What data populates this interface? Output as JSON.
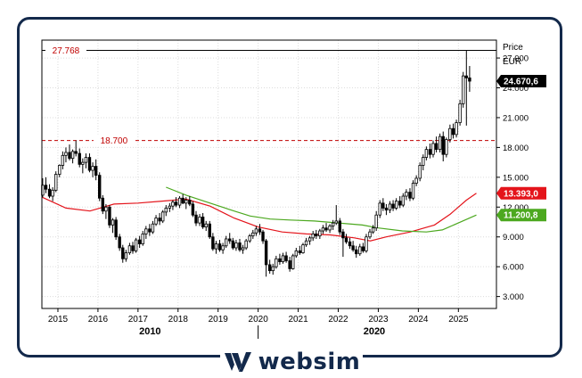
{
  "chart_data": {
    "type": "candlestick",
    "price_axis_title": "Price",
    "price_axis_unit": "EUR",
    "y_ticks": [
      {
        "value": 3000,
        "label": "3.000"
      },
      {
        "value": 6000,
        "label": "6.000"
      },
      {
        "value": 9000,
        "label": "9.000"
      },
      {
        "value": 12000,
        "label": "12.000"
      },
      {
        "value": 15000,
        "label": "15.000"
      },
      {
        "value": 18000,
        "label": "18.000"
      },
      {
        "value": 21000,
        "label": "21.000"
      },
      {
        "value": 24000,
        "label": "24.000"
      },
      {
        "value": 27000,
        "label": "27.000"
      }
    ],
    "ylim": [
      1800,
      28800
    ],
    "x_years": [
      "2015",
      "2016",
      "2017",
      "2018",
      "2019",
      "2020",
      "2021",
      "2022",
      "2023",
      "2024",
      "2025"
    ],
    "x_start": 2014.6,
    "x_end": 2025.95,
    "decade_labels": [
      {
        "year": 2010,
        "label": "2010"
      },
      {
        "year": 2020,
        "label": "2020"
      }
    ],
    "reference_lines": [
      {
        "value": 27768,
        "label": "27.768",
        "style": "solid",
        "color": "#000000"
      },
      {
        "value": 18700,
        "label": "18.700",
        "style": "dashed",
        "color": "#c00000"
      }
    ],
    "price_tags": [
      {
        "value": 24670.6,
        "label": "24.670,6",
        "color": "#000000"
      },
      {
        "value": 13393.0,
        "label": "13.393,0",
        "color": "#e4141b"
      },
      {
        "value": 11200.8,
        "label": "11.200,8",
        "color": "#4ca81f"
      }
    ],
    "series": [
      {
        "kind": "moving_average",
        "color": "#e4141b",
        "points": [
          [
            2014.6,
            13000
          ],
          [
            2015.2,
            11900
          ],
          [
            2015.8,
            11600
          ],
          [
            2016.4,
            12300
          ],
          [
            2017.0,
            12400
          ],
          [
            2017.6,
            12600
          ],
          [
            2018.2,
            12800
          ],
          [
            2018.8,
            12100
          ],
          [
            2019.4,
            10900
          ],
          [
            2020.0,
            10000
          ],
          [
            2020.6,
            9500
          ],
          [
            2021.2,
            9300
          ],
          [
            2021.8,
            9200
          ],
          [
            2022.4,
            8900
          ],
          [
            2022.8,
            8600
          ],
          [
            2023.2,
            9000
          ],
          [
            2023.8,
            9500
          ],
          [
            2024.4,
            10200
          ],
          [
            2024.8,
            11300
          ],
          [
            2025.2,
            12700
          ],
          [
            2025.45,
            13400
          ]
        ]
      },
      {
        "kind": "moving_average",
        "color": "#4ca81f",
        "points": [
          [
            2017.7,
            14000
          ],
          [
            2018.2,
            13200
          ],
          [
            2018.8,
            12400
          ],
          [
            2019.4,
            11600
          ],
          [
            2019.8,
            11100
          ],
          [
            2020.3,
            10800
          ],
          [
            2020.8,
            10700
          ],
          [
            2021.4,
            10600
          ],
          [
            2022.0,
            10400
          ],
          [
            2022.6,
            10200
          ],
          [
            2023.0,
            9900
          ],
          [
            2023.6,
            9600
          ],
          [
            2024.2,
            9500
          ],
          [
            2024.6,
            9700
          ],
          [
            2025.0,
            10400
          ],
          [
            2025.45,
            11200
          ]
        ]
      },
      {
        "kind": "monthly_candles",
        "color": "#000000",
        "candles": [
          [
            2014.62,
            13200,
            14900,
            13000,
            14200
          ],
          [
            2014.7,
            14200,
            15000,
            13400,
            13800
          ],
          [
            2014.79,
            13800,
            14300,
            12900,
            13100
          ],
          [
            2014.87,
            13100,
            14000,
            12600,
            13700
          ],
          [
            2014.95,
            13700,
            15600,
            13500,
            15300
          ],
          [
            2015.04,
            15300,
            16300,
            15000,
            16200
          ],
          [
            2015.12,
            16200,
            17600,
            15800,
            17200
          ],
          [
            2015.2,
            17200,
            18000,
            16500,
            17500
          ],
          [
            2015.29,
            17500,
            18300,
            16700,
            16900
          ],
          [
            2015.37,
            16900,
            17800,
            16400,
            17600
          ],
          [
            2015.45,
            17600,
            18700,
            17100,
            17400
          ],
          [
            2015.54,
            17400,
            17900,
            16000,
            16300
          ],
          [
            2015.62,
            16300,
            16900,
            15400,
            16500
          ],
          [
            2015.7,
            16500,
            17400,
            15900,
            17000
          ],
          [
            2015.79,
            17000,
            17400,
            15500,
            15700
          ],
          [
            2015.87,
            15700,
            16500,
            15000,
            16100
          ],
          [
            2015.95,
            16100,
            16800,
            14700,
            15200
          ],
          [
            2016.04,
            15200,
            15500,
            12600,
            12900
          ],
          [
            2016.12,
            12900,
            13200,
            11300,
            11600
          ],
          [
            2016.2,
            11600,
            12300,
            10800,
            12000
          ],
          [
            2016.29,
            12000,
            12200,
            9900,
            10200
          ],
          [
            2016.37,
            10200,
            10900,
            9400,
            10700
          ],
          [
            2016.45,
            10700,
            11000,
            8700,
            9000
          ],
          [
            2016.54,
            9000,
            9300,
            7600,
            7900
          ],
          [
            2016.62,
            7900,
            8200,
            6400,
            6800
          ],
          [
            2016.7,
            6800,
            7700,
            6500,
            7400
          ],
          [
            2016.79,
            7400,
            8400,
            7200,
            8100
          ],
          [
            2016.87,
            8100,
            8500,
            7300,
            7600
          ],
          [
            2016.95,
            7600,
            8900,
            7400,
            8700
          ],
          [
            2017.04,
            8700,
            9100,
            7900,
            8300
          ],
          [
            2017.12,
            8300,
            9600,
            8100,
            9300
          ],
          [
            2017.2,
            9300,
            10100,
            8800,
            9800
          ],
          [
            2017.29,
            9800,
            10300,
            9100,
            9500
          ],
          [
            2017.37,
            9500,
            10600,
            9300,
            10300
          ],
          [
            2017.45,
            10300,
            11200,
            10100,
            10900
          ],
          [
            2017.54,
            10900,
            11400,
            10200,
            10600
          ],
          [
            2017.62,
            10600,
            11700,
            10400,
            11500
          ],
          [
            2017.7,
            11500,
            12200,
            11100,
            11900
          ],
          [
            2017.79,
            11900,
            12400,
            11500,
            12100
          ],
          [
            2017.87,
            12100,
            12700,
            11700,
            12500
          ],
          [
            2017.95,
            12500,
            13000,
            12000,
            12200
          ],
          [
            2018.04,
            12200,
            13100,
            11900,
            12900
          ],
          [
            2018.12,
            12900,
            13300,
            12300,
            12400
          ],
          [
            2018.2,
            12400,
            13000,
            11800,
            12700
          ],
          [
            2018.29,
            12700,
            13100,
            12100,
            12300
          ],
          [
            2018.37,
            12300,
            12600,
            11000,
            11200
          ],
          [
            2018.45,
            11200,
            11600,
            10100,
            10400
          ],
          [
            2018.54,
            10400,
            11300,
            10100,
            11000
          ],
          [
            2018.62,
            11000,
            11400,
            9800,
            10000
          ],
          [
            2018.7,
            10000,
            10600,
            9600,
            10300
          ],
          [
            2018.79,
            10300,
            10600,
            8800,
            9000
          ],
          [
            2018.87,
            9000,
            9400,
            7600,
            7800
          ],
          [
            2018.95,
            7800,
            8600,
            7300,
            8300
          ],
          [
            2019.04,
            8300,
            8700,
            7500,
            7700
          ],
          [
            2019.12,
            7700,
            8400,
            7300,
            8100
          ],
          [
            2019.2,
            8100,
            9100,
            7900,
            8800
          ],
          [
            2019.29,
            8800,
            9400,
            8300,
            8600
          ],
          [
            2019.37,
            8600,
            8900,
            7700,
            7900
          ],
          [
            2019.45,
            7900,
            8700,
            7600,
            8400
          ],
          [
            2019.54,
            8400,
            8800,
            7500,
            7700
          ],
          [
            2019.62,
            7700,
            8200,
            7300,
            7900
          ],
          [
            2019.7,
            7900,
            8800,
            7700,
            8600
          ],
          [
            2019.79,
            8600,
            9300,
            8400,
            9100
          ],
          [
            2019.87,
            9100,
            9700,
            8800,
            9400
          ],
          [
            2019.95,
            9400,
            10100,
            9100,
            9800
          ],
          [
            2020.04,
            9800,
            10300,
            9200,
            9500
          ],
          [
            2020.12,
            9500,
            9700,
            8300,
            8600
          ],
          [
            2020.2,
            8600,
            8800,
            5000,
            6200
          ],
          [
            2020.29,
            6200,
            6700,
            5300,
            5600
          ],
          [
            2020.37,
            5600,
            6300,
            5200,
            6000
          ],
          [
            2020.45,
            6000,
            7100,
            5800,
            6800
          ],
          [
            2020.54,
            6800,
            7300,
            6200,
            6500
          ],
          [
            2020.62,
            6500,
            7400,
            6300,
            7100
          ],
          [
            2020.7,
            7100,
            7500,
            6400,
            6600
          ],
          [
            2020.79,
            6600,
            7000,
            5500,
            5800
          ],
          [
            2020.87,
            5800,
            7300,
            5700,
            7100
          ],
          [
            2020.95,
            7100,
            7900,
            6900,
            7600
          ],
          [
            2021.04,
            7600,
            8100,
            7200,
            7400
          ],
          [
            2021.12,
            7400,
            8400,
            7300,
            8200
          ],
          [
            2021.2,
            8200,
            8900,
            8000,
            8600
          ],
          [
            2021.29,
            8600,
            9100,
            8200,
            8900
          ],
          [
            2021.37,
            8900,
            9600,
            8600,
            9300
          ],
          [
            2021.45,
            9300,
            9700,
            8800,
            9100
          ],
          [
            2021.54,
            9100,
            9800,
            8800,
            9600
          ],
          [
            2021.62,
            9600,
            10200,
            9300,
            9900
          ],
          [
            2021.7,
            9900,
            10400,
            9500,
            9700
          ],
          [
            2021.79,
            9700,
            10300,
            9400,
            10100
          ],
          [
            2021.87,
            10100,
            10700,
            9700,
            10400
          ],
          [
            2021.95,
            10400,
            12200,
            10200,
            10600
          ],
          [
            2022.04,
            10600,
            10900,
            9200,
            9500
          ],
          [
            2022.12,
            9500,
            9800,
            7000,
            8900
          ],
          [
            2022.2,
            8900,
            9300,
            8300,
            8500
          ],
          [
            2022.29,
            8500,
            8900,
            7800,
            8100
          ],
          [
            2022.37,
            8100,
            8600,
            7500,
            7700
          ],
          [
            2022.45,
            7700,
            8100,
            6900,
            7300
          ],
          [
            2022.54,
            7300,
            8300,
            7100,
            8000
          ],
          [
            2022.62,
            8000,
            8400,
            7400,
            7600
          ],
          [
            2022.7,
            7600,
            9300,
            7400,
            9000
          ],
          [
            2022.79,
            9000,
            9800,
            8800,
            9500
          ],
          [
            2022.87,
            9500,
            10200,
            9300,
            9900
          ],
          [
            2022.95,
            9900,
            11600,
            9600,
            11200
          ],
          [
            2023.04,
            11200,
            12700,
            10900,
            12400
          ],
          [
            2023.12,
            12400,
            12900,
            11600,
            11900
          ],
          [
            2023.2,
            11900,
            12300,
            11200,
            11700
          ],
          [
            2023.29,
            11700,
            12600,
            11400,
            12300
          ],
          [
            2023.37,
            12300,
            12700,
            11600,
            11900
          ],
          [
            2023.45,
            11900,
            12900,
            11700,
            12600
          ],
          [
            2023.54,
            12600,
            13100,
            11900,
            12200
          ],
          [
            2023.62,
            12200,
            13400,
            12000,
            13100
          ],
          [
            2023.7,
            13100,
            13800,
            12700,
            13500
          ],
          [
            2023.79,
            13500,
            13900,
            12600,
            12900
          ],
          [
            2023.87,
            12900,
            14700,
            12700,
            14400
          ],
          [
            2023.95,
            14400,
            15200,
            14100,
            14900
          ],
          [
            2024.04,
            14900,
            16500,
            14600,
            16200
          ],
          [
            2024.12,
            16200,
            17300,
            15700,
            17000
          ],
          [
            2024.2,
            17000,
            18100,
            16700,
            17800
          ],
          [
            2024.29,
            17800,
            18400,
            16900,
            17300
          ],
          [
            2024.37,
            17300,
            18700,
            17000,
            18400
          ],
          [
            2024.45,
            18400,
            19100,
            17500,
            17800
          ],
          [
            2024.54,
            17800,
            19400,
            17500,
            19100
          ],
          [
            2024.62,
            19100,
            19600,
            16600,
            17300
          ],
          [
            2024.7,
            17300,
            19000,
            17000,
            18800
          ],
          [
            2024.79,
            18800,
            20300,
            18500,
            19900
          ],
          [
            2024.87,
            19900,
            20400,
            18900,
            19300
          ],
          [
            2024.95,
            19300,
            20800,
            19000,
            20500
          ],
          [
            2025.04,
            20500,
            22800,
            20200,
            22400
          ],
          [
            2025.12,
            22400,
            25600,
            22000,
            25200
          ],
          [
            2025.2,
            25200,
            27768,
            20200,
            25000
          ],
          [
            2025.28,
            25000,
            26200,
            23600,
            24671
          ]
        ]
      }
    ]
  },
  "brand": {
    "name": "websim"
  }
}
